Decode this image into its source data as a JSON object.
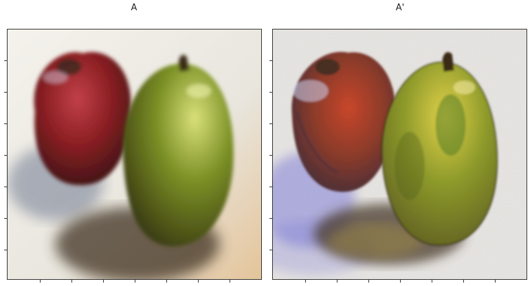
{
  "panels": [
    {
      "title": "A"
    },
    {
      "title": "A'"
    }
  ],
  "colors": {
    "background": "#ffffff",
    "axis": "#333333",
    "apple_red": "#8a1f22",
    "pear_green": "#6f8a22",
    "shadow": "#4a3b2a",
    "watercolor_blue": "#6e6cd6"
  }
}
